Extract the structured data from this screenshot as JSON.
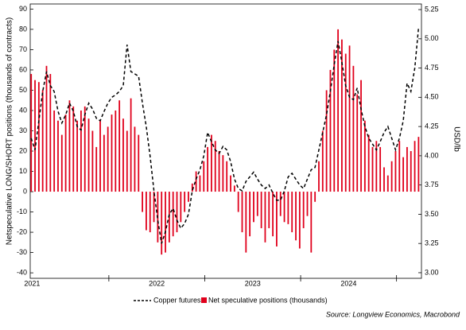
{
  "chart_data": {
    "type": "bar-line",
    "y_label": "Netspeculative LONG/SHORT positions (thousands of contracts)",
    "y2_label": "USD/lb",
    "source": "Source: Longview Economics, Macrobond",
    "xlim": [
      2021.18,
      2025.26
    ],
    "xticks": [
      {
        "value": 2021.2,
        "label": "2021"
      },
      {
        "value": 2022.5,
        "label": "2022"
      },
      {
        "value": 2023.5,
        "label": "2023"
      },
      {
        "value": 2024.5,
        "label": "2024"
      }
    ],
    "ylim": [
      -42.7,
      92.5
    ],
    "yticks": [
      -40,
      -30,
      -20,
      -10,
      0,
      10,
      20,
      30,
      40,
      50,
      60,
      70,
      80,
      90
    ],
    "y2lim": [
      2.952,
      5.298
    ],
    "y2ticks": [
      {
        "value": 3,
        "label": "3.00"
      },
      {
        "value": 3.25,
        "label": "3.25"
      },
      {
        "value": 3.5,
        "label": "3.50"
      },
      {
        "value": 3.75,
        "label": "3.75"
      },
      {
        "value": 4,
        "label": "4.00"
      },
      {
        "value": 4.25,
        "label": "4.25"
      },
      {
        "value": 4.5,
        "label": "4.50"
      },
      {
        "value": 4.75,
        "label": "4.75"
      },
      {
        "value": 5,
        "label": "5.00"
      },
      {
        "value": 5.25,
        "label": "5.25"
      }
    ],
    "x": [
      2021.19,
      2021.23,
      2021.27,
      2021.31,
      2021.35,
      2021.39,
      2021.43,
      2021.47,
      2021.51,
      2021.55,
      2021.59,
      2021.63,
      2021.67,
      2021.71,
      2021.75,
      2021.79,
      2021.83,
      2021.87,
      2021.91,
      2021.95,
      2021.99,
      2022.03,
      2022.07,
      2022.11,
      2022.15,
      2022.19,
      2022.23,
      2022.27,
      2022.31,
      2022.35,
      2022.39,
      2022.43,
      2022.47,
      2022.51,
      2022.55,
      2022.59,
      2022.63,
      2022.67,
      2022.71,
      2022.75,
      2022.79,
      2022.83,
      2022.87,
      2022.91,
      2022.95,
      2022.99,
      2023.03,
      2023.07,
      2023.11,
      2023.15,
      2023.19,
      2023.23,
      2023.27,
      2023.31,
      2023.35,
      2023.39,
      2023.43,
      2023.47,
      2023.51,
      2023.55,
      2023.59,
      2023.63,
      2023.67,
      2023.71,
      2023.75,
      2023.79,
      2023.83,
      2023.87,
      2023.91,
      2023.95,
      2023.99,
      2024.03,
      2024.07,
      2024.11,
      2024.15,
      2024.19,
      2024.23,
      2024.27,
      2024.31,
      2024.35,
      2024.39,
      2024.43,
      2024.47,
      2024.51,
      2024.55,
      2024.59,
      2024.63,
      2024.67,
      2024.71,
      2024.75,
      2024.79,
      2024.83,
      2024.87,
      2024.91,
      2024.95,
      2024.99,
      2025.03,
      2025.07,
      2025.11,
      2025.15,
      2025.19,
      2025.23
    ],
    "series": [
      {
        "name": "Copper futures",
        "kind": "line",
        "axis": "y2",
        "color": "#000000",
        "values": [
          4.15,
          4.05,
          4.3,
          4.55,
          4.72,
          4.6,
          4.55,
          4.38,
          4.28,
          4.35,
          4.45,
          4.38,
          4.25,
          4.22,
          4.35,
          4.45,
          4.4,
          4.32,
          4.3,
          4.38,
          4.45,
          4.5,
          4.52,
          4.55,
          4.6,
          4.95,
          4.72,
          4.7,
          4.68,
          4.45,
          4.25,
          4.0,
          3.7,
          3.45,
          3.25,
          3.35,
          3.5,
          3.55,
          3.45,
          3.38,
          3.42,
          3.5,
          3.7,
          3.8,
          3.88,
          4.0,
          4.2,
          4.12,
          4.05,
          4.02,
          4.08,
          4.05,
          3.95,
          3.8,
          3.72,
          3.7,
          3.78,
          3.82,
          3.86,
          3.8,
          3.75,
          3.72,
          3.75,
          3.68,
          3.62,
          3.62,
          3.7,
          3.82,
          3.85,
          3.8,
          3.75,
          3.72,
          3.8,
          3.88,
          3.9,
          4.05,
          4.2,
          4.35,
          4.55,
          4.78,
          4.98,
          4.8,
          4.6,
          4.5,
          4.48,
          4.58,
          4.4,
          4.25,
          4.15,
          4.1,
          4.05,
          4.12,
          4.2,
          4.25,
          4.15,
          4.05,
          4.15,
          4.3,
          4.62,
          4.55,
          4.75,
          5.1
        ]
      },
      {
        "name": "Net speculative positions (thousands)",
        "kind": "bar",
        "color": "#e0001b",
        "values": [
          58,
          55,
          54,
          50,
          62,
          58,
          40,
          35,
          28,
          38,
          45,
          42,
          35,
          40,
          42,
          36,
          30,
          22,
          35,
          28,
          32,
          38,
          40,
          45,
          36,
          30,
          46,
          32,
          28,
          -10,
          -19,
          -20,
          -15,
          -25,
          -31,
          -30,
          -25,
          -22,
          -20,
          -15,
          -10,
          -5,
          4,
          10,
          8,
          15,
          22,
          28,
          25,
          20,
          18,
          15,
          8,
          3,
          -10,
          -20,
          -30,
          -22,
          -15,
          -12,
          -18,
          -25,
          -18,
          -22,
          -27,
          -12,
          -15,
          -16,
          -20,
          -24,
          -28,
          -18,
          -12,
          -30,
          -5,
          15,
          30,
          50,
          60,
          70,
          80,
          75,
          68,
          72,
          62,
          48,
          55,
          35,
          28,
          22,
          25,
          22,
          12,
          8,
          15,
          20,
          25,
          17,
          22,
          20,
          25,
          27
        ]
      }
    ]
  }
}
